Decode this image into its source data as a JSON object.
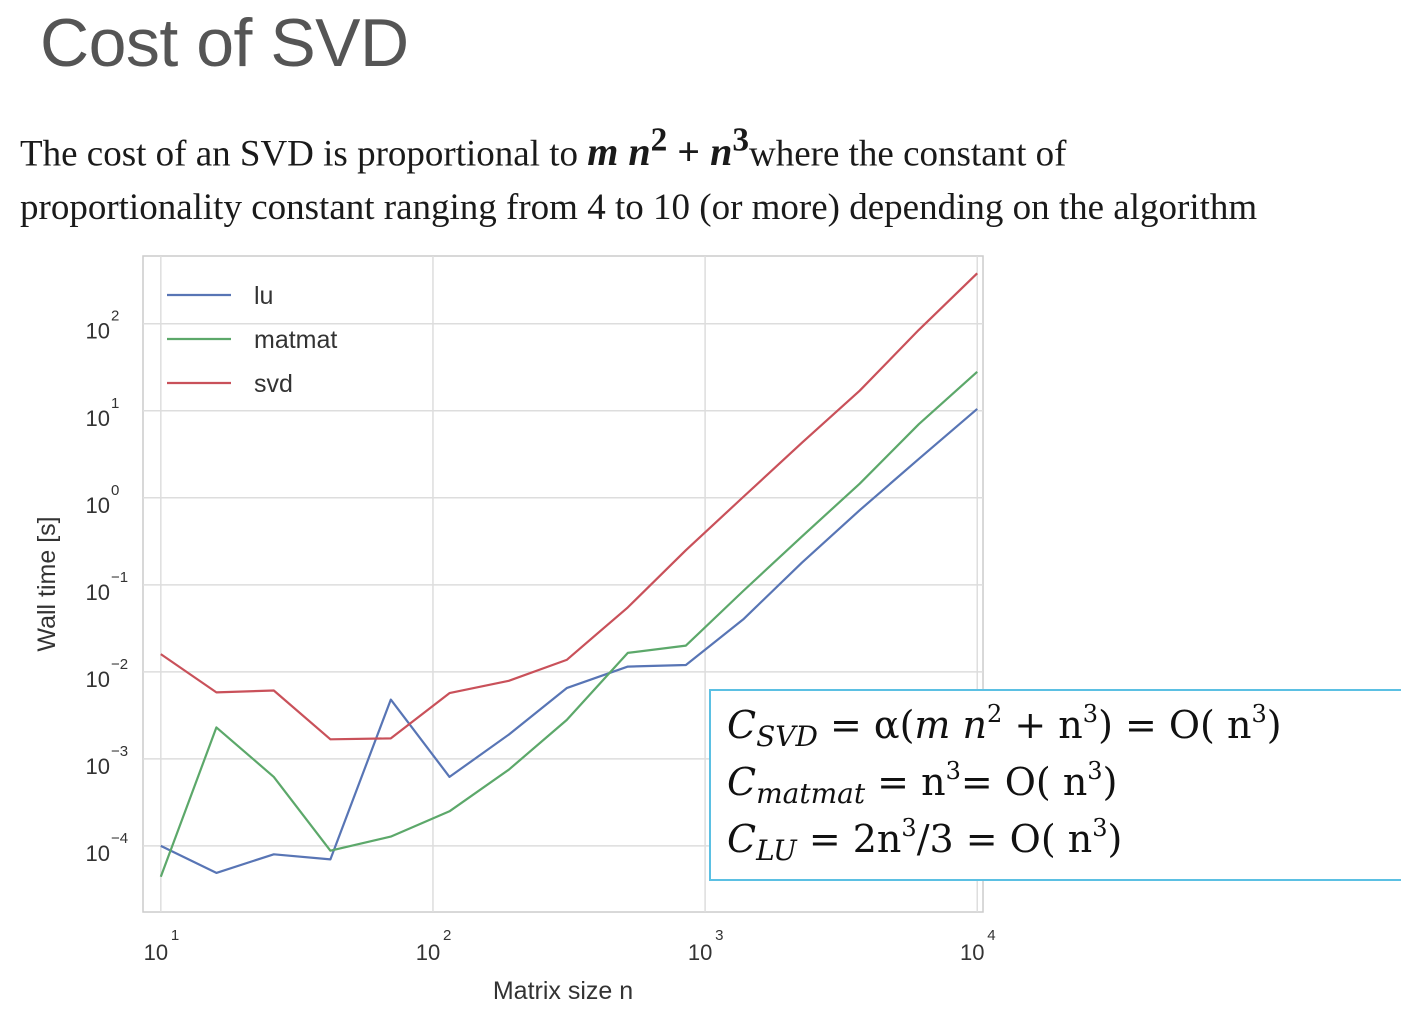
{
  "slide": {
    "title": "Cost of SVD",
    "intro_before": "The cost of an SVD is proportional to ",
    "intro_formula": {
      "m": "m",
      "n": "n",
      "sq": "2",
      "plus": " + ",
      "cube": "3"
    },
    "intro_after": "where the constant of",
    "intro_line2": "proportionality constant ranging from 4 to 10 (or more) depending on the algorithm"
  },
  "formulas": {
    "svd": {
      "c": "C",
      "sub": "SVD",
      "rest1": " = α(",
      "m": "m",
      "mid": " n",
      "sq": "2",
      "plus": " + n",
      "cube": "3",
      "rest2": ") = O( n",
      "cube2": "3",
      "end": ")"
    },
    "matmat": {
      "c": "C",
      "sub": "matmat",
      "rest1": " = n",
      "cube": "3",
      "rest2": "= O( n",
      "cube2": "3",
      "end": ")"
    },
    "lu": {
      "c": "C",
      "sub": "LU",
      "rest1": " = 2n",
      "cube": "3",
      "rest2": "/3 = O( n",
      "cube2": "3",
      "end": ")"
    }
  },
  "chart_data": {
    "type": "line",
    "xscale": "log",
    "yscale": "log",
    "xlabel": "Matrix size n",
    "ylabel": "Wall time [s]",
    "xlim": [
      8.6,
      10500
    ],
    "ylim": [
      1.74e-05,
      600
    ],
    "xticks": [
      {
        "base": "10",
        "exp": "1",
        "value": 10
      },
      {
        "base": "10",
        "exp": "2",
        "value": 100
      },
      {
        "base": "10",
        "exp": "3",
        "value": 1000
      },
      {
        "base": "10",
        "exp": "4",
        "value": 10000
      }
    ],
    "yticks": [
      {
        "base": "10",
        "exp": "−4",
        "value": 0.0001
      },
      {
        "base": "10",
        "exp": "−3",
        "value": 0.001
      },
      {
        "base": "10",
        "exp": "−2",
        "value": 0.01
      },
      {
        "base": "10",
        "exp": "−1",
        "value": 0.1
      },
      {
        "base": "10",
        "exp": "0",
        "value": 1
      },
      {
        "base": "10",
        "exp": "1",
        "value": 10
      },
      {
        "base": "10",
        "exp": "2",
        "value": 100
      }
    ],
    "grid": true,
    "legend_position": "top-left",
    "series": [
      {
        "name": "lu",
        "color": "#5875b5",
        "x": [
          10,
          16,
          26,
          42,
          70,
          115,
          190,
          310,
          520,
          850,
          1380,
          2270,
          3700,
          6100,
          10000
        ],
        "y": [
          0.0001,
          4.9e-05,
          8e-05,
          7e-05,
          0.0048,
          0.00062,
          0.0019,
          0.0065,
          0.0115,
          0.012,
          0.04,
          0.18,
          0.72,
          2.8,
          10.5
        ]
      },
      {
        "name": "matmat",
        "color": "#5ca86a",
        "x": [
          10,
          16,
          26,
          42,
          70,
          115,
          190,
          310,
          520,
          850,
          1380,
          2270,
          3700,
          6100,
          10000
        ],
        "y": [
          4.42e-05,
          0.0023,
          0.00062,
          8.8e-05,
          0.000128,
          0.00025,
          0.00075,
          0.0028,
          0.0165,
          0.02,
          0.085,
          0.36,
          1.45,
          7.0,
          28.0
        ]
      },
      {
        "name": "svd",
        "color": "#c9515a",
        "x": [
          10,
          16,
          26,
          42,
          70,
          115,
          190,
          310,
          520,
          850,
          1380,
          2270,
          3700,
          6100,
          10000
        ],
        "y": [
          0.016,
          0.0058,
          0.0061,
          0.00168,
          0.00172,
          0.0057,
          0.0079,
          0.0137,
          0.055,
          0.25,
          1.02,
          4.3,
          17.0,
          85.0,
          380.0
        ]
      }
    ]
  }
}
